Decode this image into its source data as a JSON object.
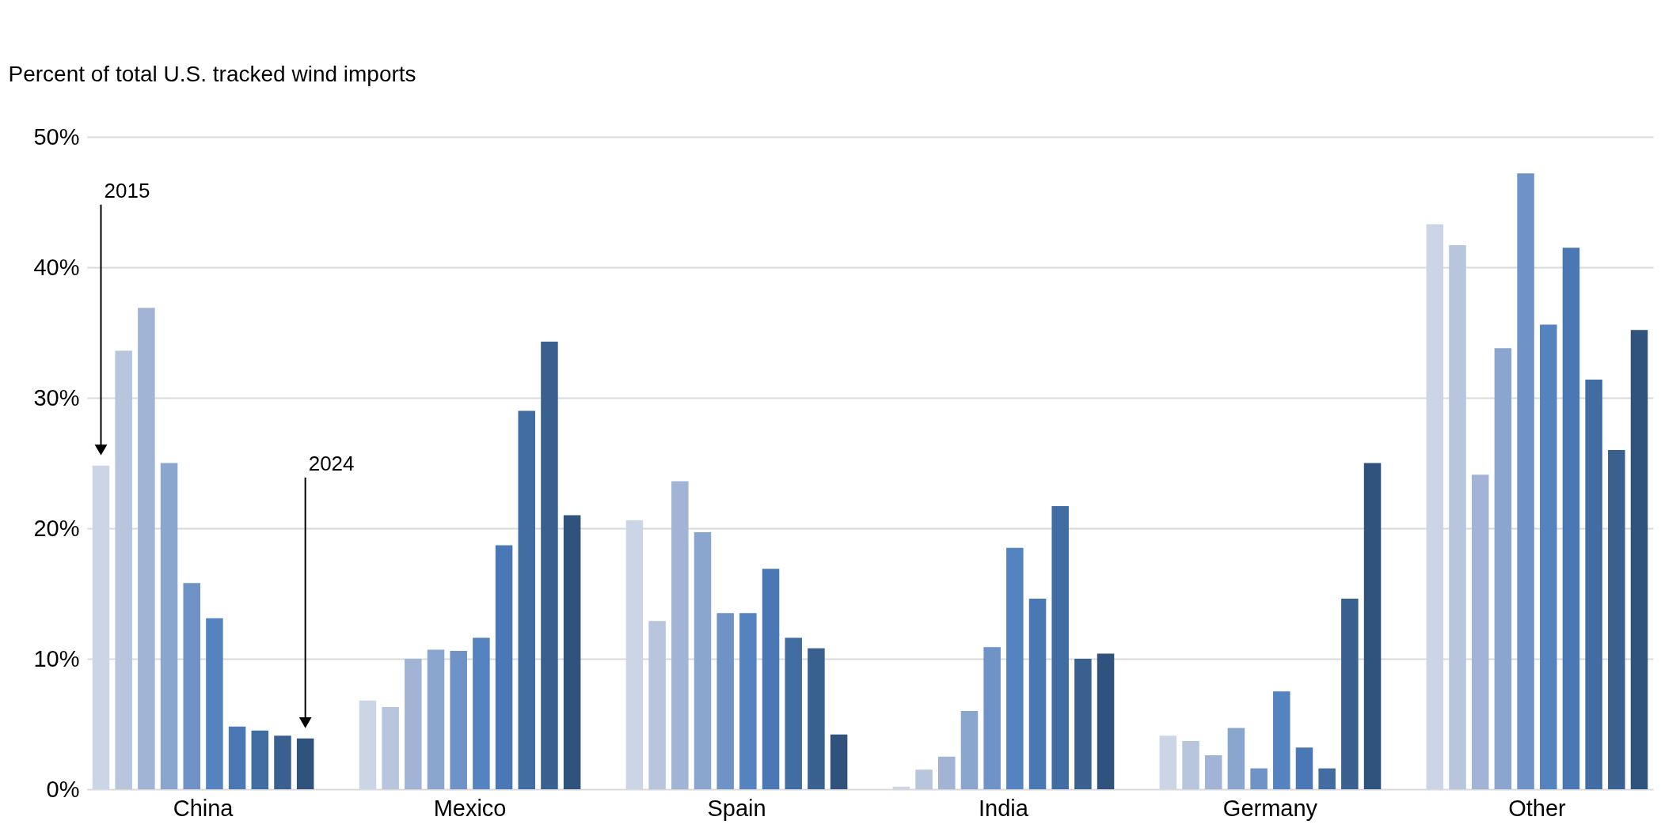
{
  "chart_data": {
    "type": "bar",
    "ylabel": "Percent of total U.S. tracked wind imports",
    "categories": [
      "China",
      "Mexico",
      "Spain",
      "India",
      "Germany",
      "Other"
    ],
    "series": [
      {
        "color": "#ccd5e5",
        "values": [
          24.8,
          6.8,
          20.6,
          0.2,
          4.1,
          43.3
        ]
      },
      {
        "color": "#b7c5dd",
        "values": [
          33.6,
          6.3,
          12.9,
          1.5,
          3.7,
          41.7
        ]
      },
      {
        "color": "#a1b4d5",
        "values": [
          36.9,
          10.0,
          23.6,
          2.5,
          2.6,
          24.1
        ]
      },
      {
        "color": "#8aa6cf",
        "values": [
          25.0,
          10.7,
          19.7,
          6.0,
          4.7,
          33.8
        ]
      },
      {
        "color": "#6f93c6",
        "values": [
          15.8,
          10.6,
          13.5,
          10.9,
          1.6,
          47.2
        ]
      },
      {
        "color": "#5483c0",
        "values": [
          13.1,
          11.6,
          13.5,
          18.5,
          7.5,
          35.6
        ]
      },
      {
        "color": "#4a78b4",
        "values": [
          4.8,
          18.7,
          16.9,
          14.6,
          3.2,
          41.5
        ]
      },
      {
        "color": "#426da3",
        "values": [
          4.5,
          29.0,
          11.6,
          21.7,
          1.6,
          31.4
        ]
      },
      {
        "color": "#3a6090",
        "values": [
          4.1,
          34.3,
          10.8,
          10.0,
          14.6,
          26.0
        ]
      },
      {
        "color": "#30537e",
        "values": [
          3.9,
          21.0,
          4.2,
          10.4,
          25.0,
          35.2
        ]
      }
    ],
    "ylim": [
      0,
      50
    ],
    "yticks": [
      {
        "value": 0,
        "label": "0%"
      },
      {
        "value": 10,
        "label": "10%"
      },
      {
        "value": 20,
        "label": "20%"
      },
      {
        "value": 30,
        "label": "30%"
      },
      {
        "value": 40,
        "label": "40%"
      },
      {
        "value": 50,
        "label": "50%"
      }
    ],
    "grid": "y",
    "legend": false,
    "annotations": [
      "2015",
      "2024"
    ]
  }
}
